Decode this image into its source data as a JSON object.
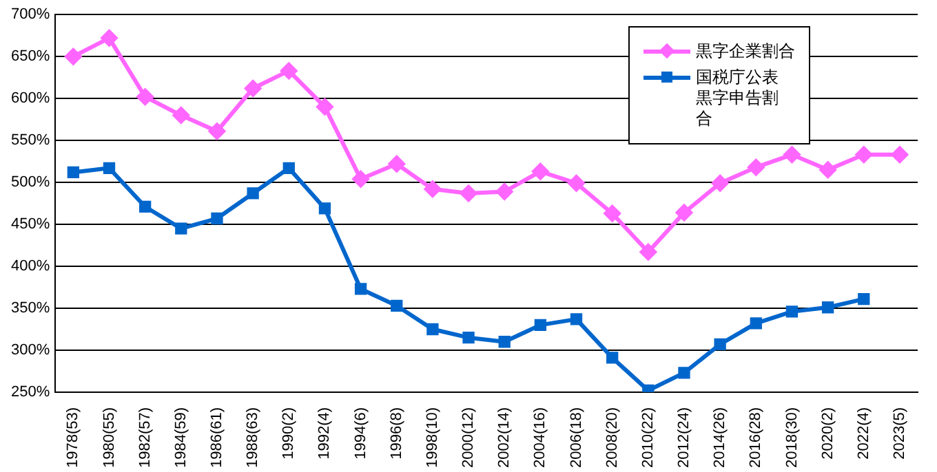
{
  "chart_data": {
    "type": "line",
    "categories": [
      "1978(53)",
      "1980(55)",
      "1982(57)",
      "1984(59)",
      "1986(61)",
      "1988(63)",
      "1990(2)",
      "1992(4)",
      "1994(6)",
      "1996(8)",
      "1998(10)",
      "2000(12)",
      "2002(14)",
      "2004(16)",
      "2006(18)",
      "2008(20)",
      "2010(22)",
      "2012(24)",
      "2014(26)",
      "2016(28)",
      "2018(30)",
      "2020(2)",
      "2022(4)",
      "2023(5)"
    ],
    "series": [
      {
        "name": "黒字企業割合",
        "color": "#ff66ff",
        "marker": "diamond",
        "values": [
          650,
          672,
          602,
          580,
          561,
          612,
          633,
          590,
          504,
          522,
          492,
          487,
          489,
          513,
          499,
          463,
          417,
          464,
          499,
          518,
          533,
          515,
          533,
          533
        ]
      },
      {
        "name": "国税庁公表黒字申告割合",
        "color": "#0066cc",
        "marker": "square",
        "values": [
          512,
          517,
          471,
          445,
          457,
          487,
          517,
          469,
          373,
          353,
          325,
          315,
          310,
          330,
          337,
          291,
          252,
          273,
          307,
          332,
          346,
          351,
          361,
          null
        ]
      }
    ],
    "ylim": [
      250,
      700
    ],
    "yticks": [
      {
        "value": 250,
        "label": "250%"
      },
      {
        "value": 300,
        "label": "300%"
      },
      {
        "value": 350,
        "label": "350%"
      },
      {
        "value": 400,
        "label": "400%"
      },
      {
        "value": 450,
        "label": "450%"
      },
      {
        "value": 500,
        "label": "500%"
      },
      {
        "value": 550,
        "label": "550%"
      },
      {
        "value": 600,
        "label": "600%"
      },
      {
        "value": 650,
        "label": "650%"
      },
      {
        "value": 700,
        "label": "700%"
      }
    ],
    "grid": "y",
    "legend": "top right",
    "line_style": "solid"
  }
}
